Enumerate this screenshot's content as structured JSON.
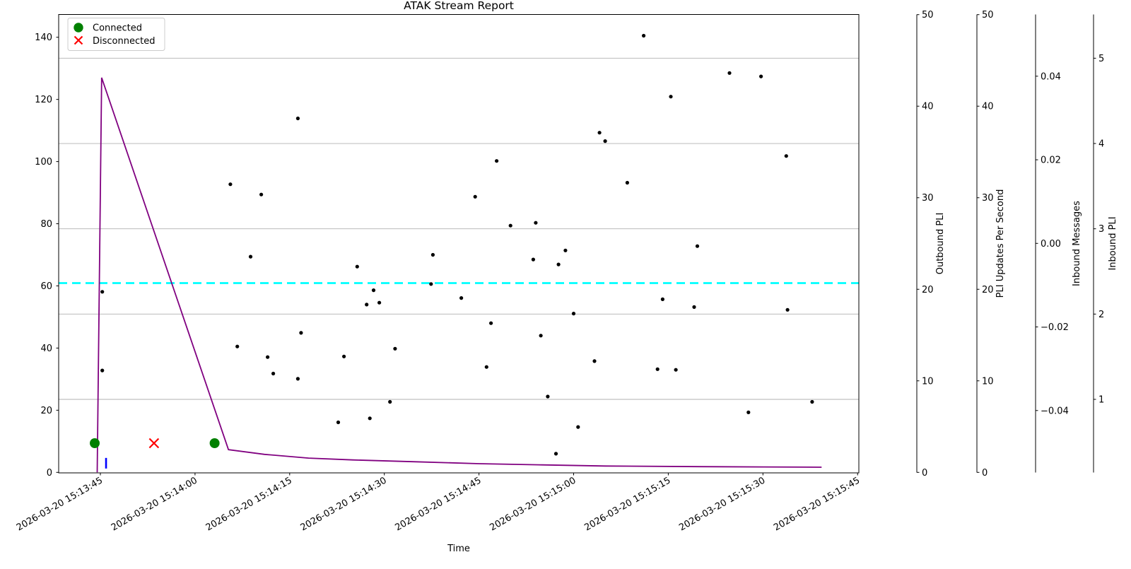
{
  "chart_data": {
    "type": "scatter",
    "title": "ATAK Stream Report",
    "xlabel": "Time",
    "x_tick_seconds": [
      0,
      15,
      30,
      45,
      60,
      75,
      90,
      105,
      120
    ],
    "x_tick_labels": [
      "2026-03-20 15:13:45",
      "2026-03-20 15:14:00",
      "2026-03-20 15:14:15",
      "2026-03-20 15:14:30",
      "2026-03-20 15:14:45",
      "2026-03-20 15:15:00",
      "2026-03-20 15:15:15",
      "2026-03-20 15:15:30",
      "2026-03-20 15:15:45"
    ],
    "left_axis": {
      "ticks": [
        0,
        20,
        40,
        60,
        80,
        100,
        120,
        140
      ],
      "ylim": [
        0,
        147
      ]
    },
    "legend": [
      {
        "label": "Connected",
        "marker": "circle",
        "color": "#008000"
      },
      {
        "label": "Disconnected",
        "marker": "x",
        "color": "#ff0000"
      }
    ],
    "scatter_series": {
      "name": "inbound-message-sizes",
      "color": "#000000",
      "points": [
        [
          31.3,
          113.9
        ],
        [
          20.6,
          92.7
        ],
        [
          25.5,
          89.4
        ],
        [
          79.1,
          109.3
        ],
        [
          80.0,
          106.6
        ],
        [
          62.8,
          100.2
        ],
        [
          59.4,
          88.7
        ],
        [
          65.0,
          79.4
        ],
        [
          69.0,
          80.3
        ],
        [
          86.1,
          140.5
        ],
        [
          99.7,
          128.5
        ],
        [
          104.7,
          127.4
        ],
        [
          90.4,
          120.9
        ],
        [
          108.7,
          101.8
        ],
        [
          83.5,
          93.2
        ],
        [
          94.6,
          72.8
        ],
        [
          23.8,
          69.4
        ],
        [
          0.3,
          58.1
        ],
        [
          0.3,
          32.8
        ],
        [
          21.7,
          40.5
        ],
        [
          26.5,
          37.1
        ],
        [
          27.4,
          31.8
        ],
        [
          31.8,
          44.9
        ],
        [
          31.3,
          30.1
        ],
        [
          37.7,
          16.1
        ],
        [
          52.7,
          70.0
        ],
        [
          40.7,
          66.2
        ],
        [
          73.7,
          71.4
        ],
        [
          68.6,
          68.5
        ],
        [
          72.6,
          66.9
        ],
        [
          52.4,
          60.6
        ],
        [
          43.3,
          58.6
        ],
        [
          57.2,
          56.1
        ],
        [
          42.2,
          54.0
        ],
        [
          44.2,
          54.6
        ],
        [
          75.0,
          51.1
        ],
        [
          61.9,
          48.0
        ],
        [
          69.8,
          44.0
        ],
        [
          46.7,
          39.8
        ],
        [
          38.6,
          37.3
        ],
        [
          78.3,
          35.8
        ],
        [
          61.2,
          33.9
        ],
        [
          70.9,
          24.4
        ],
        [
          45.9,
          22.7
        ],
        [
          42.7,
          17.4
        ],
        [
          75.7,
          14.6
        ],
        [
          72.2,
          6.0
        ],
        [
          89.1,
          55.7
        ],
        [
          94.1,
          53.2
        ],
        [
          108.9,
          52.3
        ],
        [
          88.3,
          33.2
        ],
        [
          91.2,
          33.0
        ],
        [
          112.8,
          22.7
        ],
        [
          102.7,
          19.3
        ]
      ]
    },
    "outbound_line": {
      "name": "Outbound PLI",
      "color": "#800080",
      "points": [
        [
          -0.5,
          0
        ],
        [
          0.2,
          127.0
        ],
        [
          20.3,
          7.3
        ],
        [
          26,
          5.8
        ],
        [
          33,
          4.6
        ],
        [
          40,
          4.0
        ],
        [
          50,
          3.4
        ],
        [
          60,
          2.8
        ],
        [
          70,
          2.4
        ],
        [
          80,
          2.05
        ],
        [
          95,
          1.85
        ],
        [
          105,
          1.75
        ],
        [
          114.3,
          1.65
        ]
      ]
    },
    "threshold_line": {
      "color": "#00ffff",
      "style": "dashed",
      "value": 60.9
    },
    "connected_events": {
      "label": "Connected",
      "color": "#008000",
      "points": [
        [
          -0.9,
          9.4
        ],
        [
          18.1,
          9.4
        ]
      ]
    },
    "disconnected_events": {
      "label": "Disconnected",
      "color": "#ff0000",
      "points": [
        [
          8.5,
          9.4
        ]
      ]
    },
    "pli_rate_markers": {
      "color": "#0000ff",
      "axis": "pli_rate",
      "points": [
        [
          0.9,
          1.0
        ]
      ]
    },
    "right_axes": [
      {
        "id": "outbound",
        "label": "Outbound PLI",
        "color": "#800080",
        "tick_label_color": "#800080",
        "ticks": [
          0,
          10,
          20,
          30,
          40,
          50
        ],
        "tick_labels": [
          "0",
          "10",
          "20",
          "30",
          "40",
          "50"
        ],
        "range": [
          0,
          50
        ]
      },
      {
        "id": "pli_rate",
        "label": "PLI Updates Per Second",
        "color": "#0000ff",
        "tick_label_color": "#0000ff",
        "ticks": [
          0,
          10,
          20,
          30,
          40,
          50
        ],
        "tick_labels": [
          "0",
          "10",
          "20",
          "30",
          "40",
          "50"
        ],
        "range": [
          0,
          50
        ]
      },
      {
        "id": "messages",
        "label": "Inbound Messages",
        "color": "#ff0000",
        "tick_label_color": "#000000",
        "ticks": [
          0.04,
          0.02,
          0,
          -0.02,
          -0.04
        ],
        "tick_labels": [
          "0.04",
          "0.02",
          "0.00",
          "−0.02",
          "−0.04"
        ],
        "range": [
          -0.055,
          0.055
        ]
      },
      {
        "id": "inbound_pli",
        "label": "Inbound PLI",
        "color": "#000000",
        "tick_label_color": "#000000",
        "ticks": [
          5,
          4,
          3,
          2,
          1
        ],
        "tick_labels": [
          "5",
          "4",
          "3",
          "2",
          "1"
        ],
        "range": [
          0.14,
          5.51
        ],
        "grid": true
      }
    ]
  }
}
